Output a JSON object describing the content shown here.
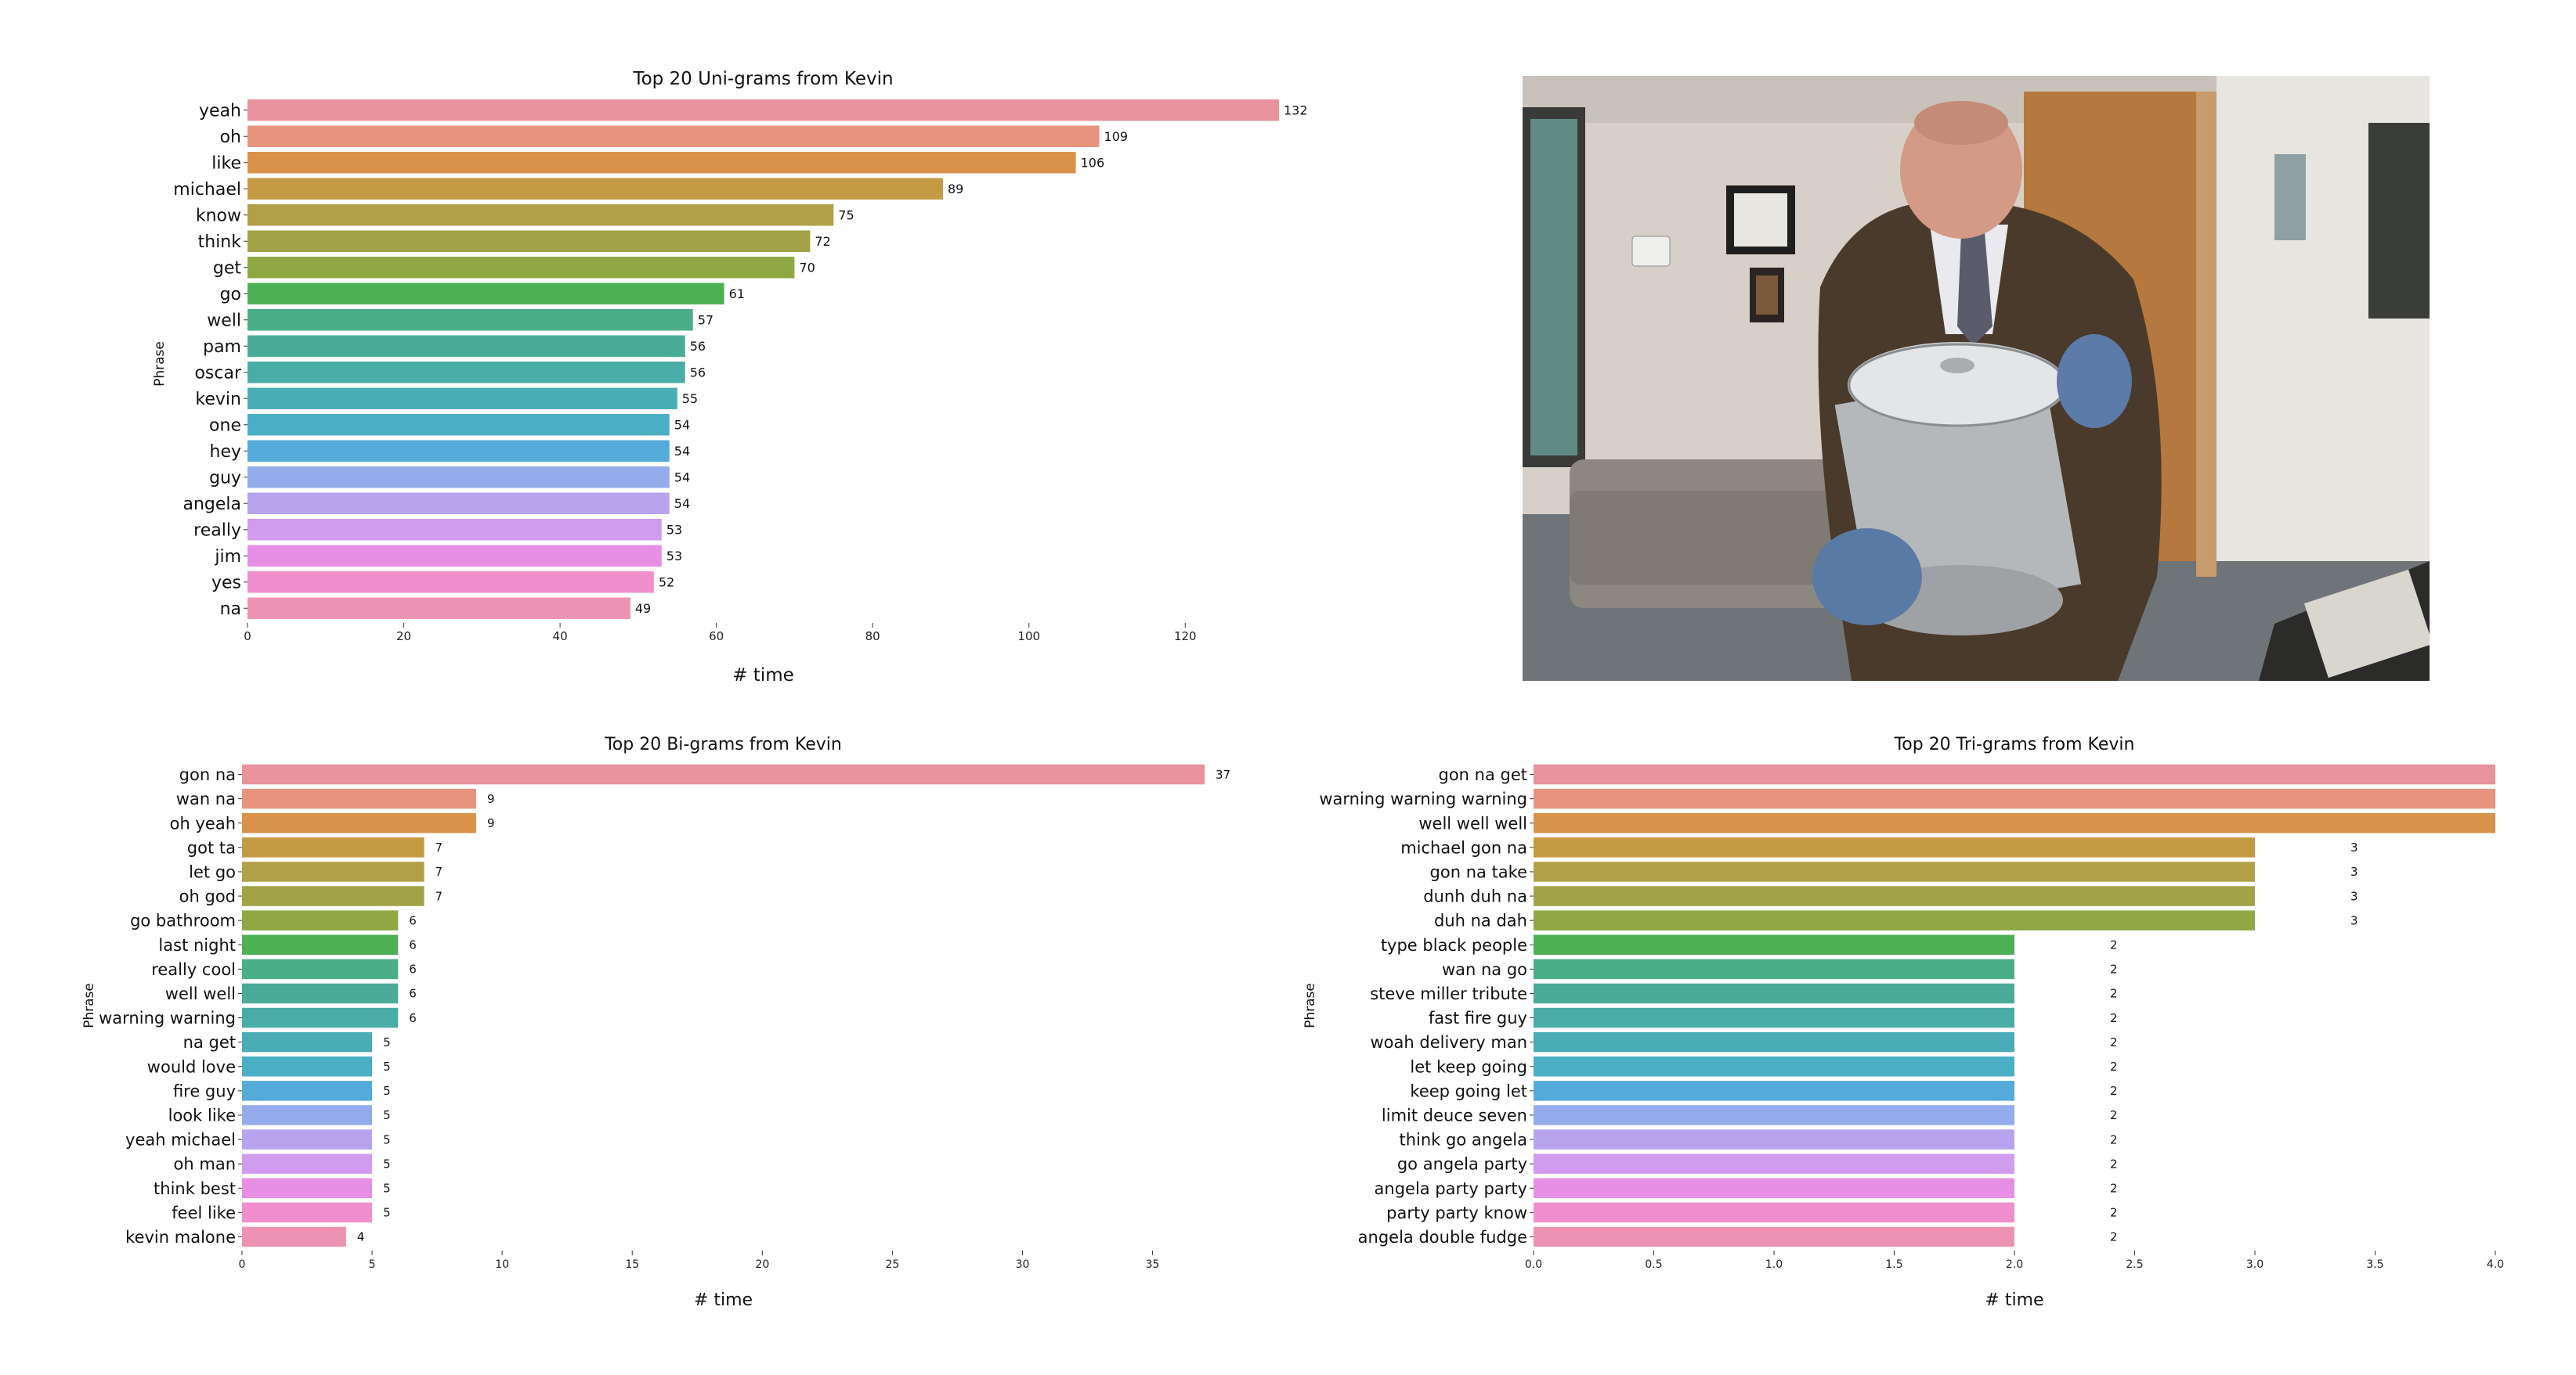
{
  "chart_data": [
    {
      "type": "bar",
      "orientation": "horizontal",
      "title": "Top 20 Uni-grams from Kevin",
      "xlabel": "# time",
      "ylabel": "Phrase",
      "categories": [
        "yeah",
        "oh",
        "like",
        "michael",
        "know",
        "think",
        "get",
        "go",
        "well",
        "pam",
        "oscar",
        "kevin",
        "one",
        "hey",
        "guy",
        "angela",
        "really",
        "jim",
        "yes",
        "na"
      ],
      "values": [
        132,
        109,
        106,
        89,
        75,
        72,
        70,
        61,
        57,
        56,
        56,
        55,
        54,
        54,
        54,
        54,
        53,
        53,
        52,
        49
      ],
      "xticks": [
        0,
        20,
        40,
        60,
        80,
        100,
        120
      ],
      "xlim": [
        0,
        132
      ],
      "grid": false,
      "data_labels": true
    },
    {
      "type": "bar",
      "orientation": "horizontal",
      "title": "Top 20 Bi-grams from Kevin",
      "xlabel": "# time",
      "ylabel": "Phrase",
      "categories": [
        "gon na",
        "wan na",
        "oh yeah",
        "got ta",
        "let go",
        "oh god",
        "go bathroom",
        "last night",
        "really cool",
        "well well",
        "warning warning",
        "na get",
        "would love",
        "fire guy",
        "look like",
        "yeah michael",
        "oh man",
        "think best",
        "feel like",
        "kevin malone"
      ],
      "values": [
        37,
        9,
        9,
        7,
        7,
        7,
        6,
        6,
        6,
        6,
        6,
        5,
        5,
        5,
        5,
        5,
        5,
        5,
        5,
        4
      ],
      "xticks": [
        0,
        5,
        10,
        15,
        20,
        25,
        30,
        35
      ],
      "xlim": [
        0,
        37
      ],
      "grid": false,
      "data_labels": true
    },
    {
      "type": "bar",
      "orientation": "horizontal",
      "title": "Top 20 Tri-grams from Kevin",
      "xlabel": "# time",
      "ylabel": "Phrase",
      "categories": [
        "gon na get",
        "warning warning warning",
        "well well well",
        "michael gon na",
        "gon na take",
        "dunh duh na",
        "duh na dah",
        "type black people",
        "wan na go",
        "steve miller tribute",
        "fast fire guy",
        "woah delivery man",
        "let keep going",
        "keep going let",
        "limit deuce seven",
        "think go angela",
        "go angela party",
        "angela party party",
        "party party know",
        "angela double fudge"
      ],
      "values": [
        4,
        4,
        4,
        3,
        3,
        3,
        3,
        2,
        2,
        2,
        2,
        2,
        2,
        2,
        2,
        2,
        2,
        2,
        2,
        2
      ],
      "value_labels": [
        "",
        "",
        "",
        "3",
        "3",
        "3",
        "3",
        "2",
        "2",
        "2",
        "2",
        "2",
        "2",
        "2",
        "2",
        "2",
        "2",
        "2",
        "2",
        "2"
      ],
      "xticks": [
        "0.0",
        "0.5",
        "1.0",
        "1.5",
        "2.0",
        "2.5",
        "3.0",
        "3.5",
        "4.0"
      ],
      "xlim": [
        0,
        4
      ],
      "grid": false,
      "data_labels": true
    }
  ],
  "palette": [
    "#e8939e",
    "#e8937d",
    "#d8924a",
    "#c59a44",
    "#b2a046",
    "#a1a346",
    "#8ea944",
    "#4eb055",
    "#4aae88",
    "#4aac98",
    "#4aaca6",
    "#4aacb5",
    "#4aaec4",
    "#55abd9",
    "#94acec",
    "#b8a4ee",
    "#d19bee",
    "#e78fe4",
    "#ef8fce",
    "#ec93b4"
  ],
  "photo": {
    "description_icon": "office-photo"
  }
}
